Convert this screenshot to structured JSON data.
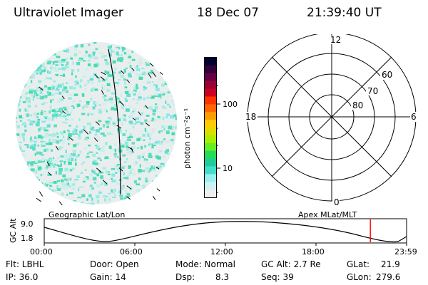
{
  "header": {
    "title": "Ultraviolet Imager",
    "date": "18 Dec 07",
    "time": "21:39:40 UT"
  },
  "colorbar": {
    "unit_label": "photon cm⁻²s⁻¹",
    "ticks": [
      "100",
      "10"
    ],
    "colors": [
      "#000033",
      "#33003a",
      "#660044",
      "#990033",
      "#cc0022",
      "#ff3300",
      "#ff6600",
      "#ff9900",
      "#ffcc00",
      "#dddd00",
      "#aaee00",
      "#66ee22",
      "#22dd55",
      "#22cc99",
      "#44ddcc",
      "#99eeee",
      "#ccf2f2",
      "#eeeeee"
    ]
  },
  "polar_plot": {
    "mlt_labels": [
      "12",
      "6",
      "0",
      "18"
    ],
    "lat_labels": [
      "60",
      "70",
      "80"
    ]
  },
  "geo_label": "Geographic Lat/Lon",
  "apex_label": "Apex MLat/MLT",
  "gc_alt_axis": {
    "ylabel": "GC Alt",
    "yticks": [
      "9.0",
      "1.8"
    ],
    "xticks": [
      "00:00",
      "06:00",
      "12:00",
      "18:00",
      "23:59"
    ],
    "marker_color": "#ff0000",
    "marker_time_fraction": 0.9
  },
  "info": {
    "flt": "Flt: LBHL",
    "ip": "IP: 36.0",
    "door": "Door: Open",
    "gain": "Gain: 14",
    "mode": "Mode: Normal",
    "dsp_label": "Dsp:",
    "dsp_value": "8.3",
    "gc_alt": "GC Alt: 2.7 Re",
    "seq": "Seq: 39",
    "glat_label": "GLat:",
    "glat_value": "21.9",
    "glon_label": "GLon:",
    "glon_value": "279.6"
  }
}
